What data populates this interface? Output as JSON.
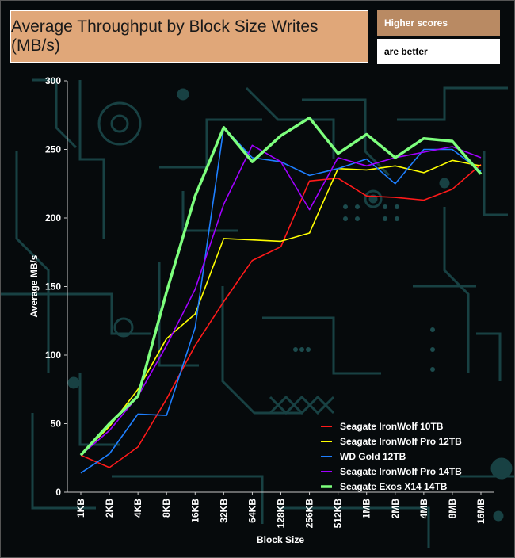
{
  "colors": {
    "title_bg": "#e0a779",
    "note_bg": "#b98a63",
    "circuit": "#1c4b4d"
  },
  "notes": {
    "line1": "Higher scores",
    "line2": "are better"
  },
  "chart_data": {
    "type": "line",
    "title": "Average Throughput by Block Size Writes (MB/s)",
    "xlabel": "Block Size",
    "ylabel": "Average MB/s",
    "ylim": [
      0,
      300
    ],
    "yticks": [
      0,
      50,
      100,
      150,
      200,
      250,
      300
    ],
    "grid": false,
    "legend_position": "bottom-right",
    "categories": [
      "1KB",
      "2KB",
      "4KB",
      "8KB",
      "16KB",
      "32KB",
      "64KB",
      "128KB",
      "256KB",
      "512KB",
      "1MB",
      "2MB",
      "4MB",
      "8MB",
      "16MB"
    ],
    "series": [
      {
        "name": "Seagate IronWolf 10TB",
        "color": "#ff1a1a",
        "width": 1.6,
        "values": [
          27,
          18,
          33,
          68,
          107,
          139,
          169,
          179,
          227,
          229,
          216,
          215,
          213,
          221,
          239
        ]
      },
      {
        "name": "Seagate IronWolf Pro 12TB",
        "color": "#ffff00",
        "width": 1.6,
        "values": [
          27,
          48,
          75,
          112,
          130,
          185,
          184,
          183,
          189,
          236,
          235,
          238,
          233,
          242,
          238
        ]
      },
      {
        "name": "WD Gold 12TB",
        "color": "#1e7fff",
        "width": 1.6,
        "values": [
          14,
          28,
          57,
          56,
          120,
          266,
          244,
          241,
          231,
          236,
          243,
          225,
          250,
          250,
          234
        ]
      },
      {
        "name": "Seagate IronWolf Pro 14TB",
        "color": "#a000ff",
        "width": 1.6,
        "values": [
          27,
          45,
          70,
          107,
          148,
          210,
          253,
          241,
          206,
          244,
          238,
          244,
          248,
          252,
          244
        ]
      },
      {
        "name": "Seagate Exos X14 14TB",
        "color": "#7dff7d",
        "width": 3.5,
        "values": [
          27,
          50,
          70,
          146,
          216,
          266,
          241,
          260,
          273,
          247,
          261,
          244,
          258,
          256,
          232
        ]
      }
    ]
  }
}
